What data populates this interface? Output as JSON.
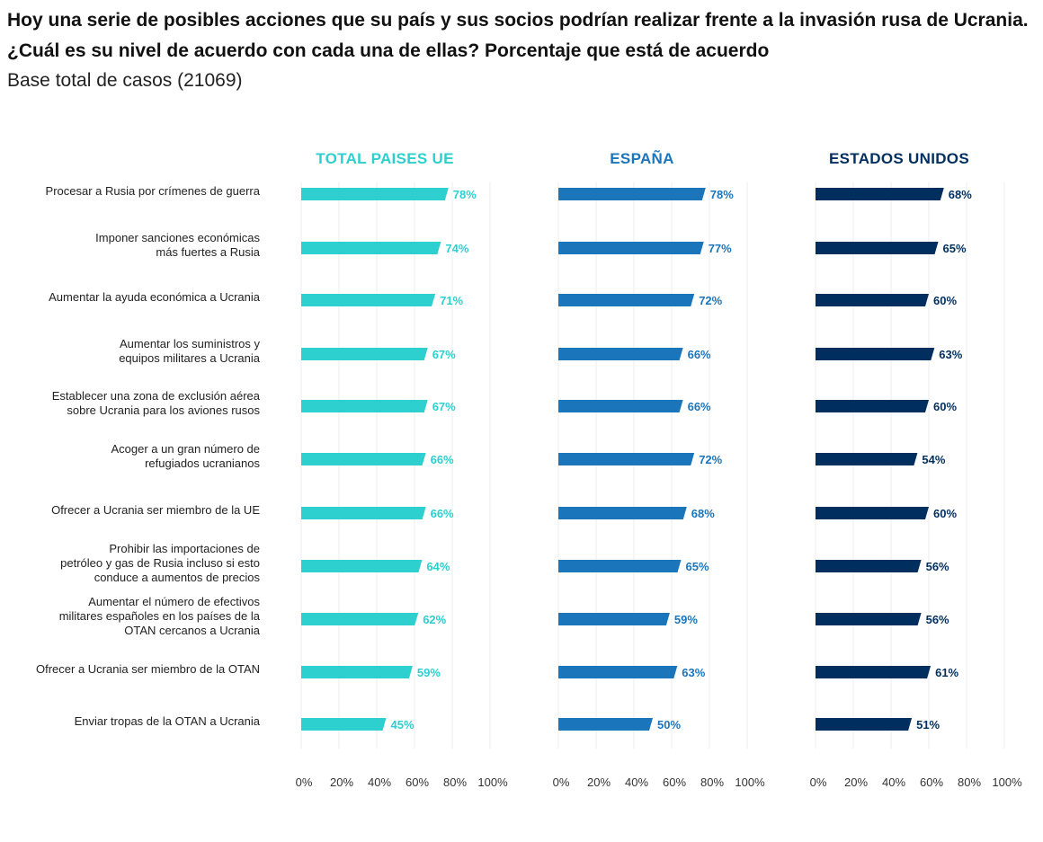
{
  "title": "Hoy una serie de posibles acciones que su país y sus socios podrían realizar frente a la invasión rusa de Ucrania. ¿Cuál es su nivel de acuerdo con cada una de ellas? Porcentaje que está de acuerdo",
  "subtitle": "Base total de casos (21069)",
  "chart_data": {
    "type": "bar",
    "orientation": "horizontal",
    "categories": [
      [
        "Procesar a Rusia por crímenes de guerra"
      ],
      [
        "Imponer sanciones económicas",
        "más fuertes a Rusia"
      ],
      [
        "Aumentar la ayuda económica a Ucrania"
      ],
      [
        "Aumentar los suministros y",
        "equipos militares a Ucrania"
      ],
      [
        "Establecer una zona de exclusión aérea",
        "sobre Ucrania para los aviones rusos"
      ],
      [
        "Acoger a un gran número de",
        "refugiados ucranianos"
      ],
      [
        "Ofrecer a Ucrania ser miembro de la UE"
      ],
      [
        "Prohibir las importaciones de",
        "petróleo y gas de Rusia incluso si esto",
        "conduce a aumentos de precios"
      ],
      [
        "Aumentar el número de efectivos",
        "militares españoles en los países de la",
        "OTAN cercanos a Ucrania"
      ],
      [
        "Ofrecer a Ucrania ser miembro de la OTAN"
      ],
      [
        "Enviar tropas de la OTAN a Ucrania"
      ]
    ],
    "series": [
      {
        "name": "TOTAL PAISES UE",
        "color": "#2ecfcf",
        "values": [
          78,
          74,
          71,
          67,
          67,
          66,
          66,
          64,
          62,
          59,
          45
        ]
      },
      {
        "name": "ESPAÑA",
        "color": "#1b75bb",
        "values": [
          78,
          77,
          72,
          66,
          66,
          72,
          68,
          65,
          59,
          63,
          50
        ]
      },
      {
        "name": "ESTADOS UNIDOS",
        "color": "#002f5f",
        "values": [
          68,
          65,
          60,
          63,
          60,
          54,
          60,
          56,
          56,
          61,
          51
        ]
      }
    ],
    "xlim": [
      0,
      100
    ],
    "xticks": [
      "0%",
      "20%",
      "40%",
      "60%",
      "80%",
      "100%"
    ],
    "value_suffix": "%",
    "grid": true
  }
}
